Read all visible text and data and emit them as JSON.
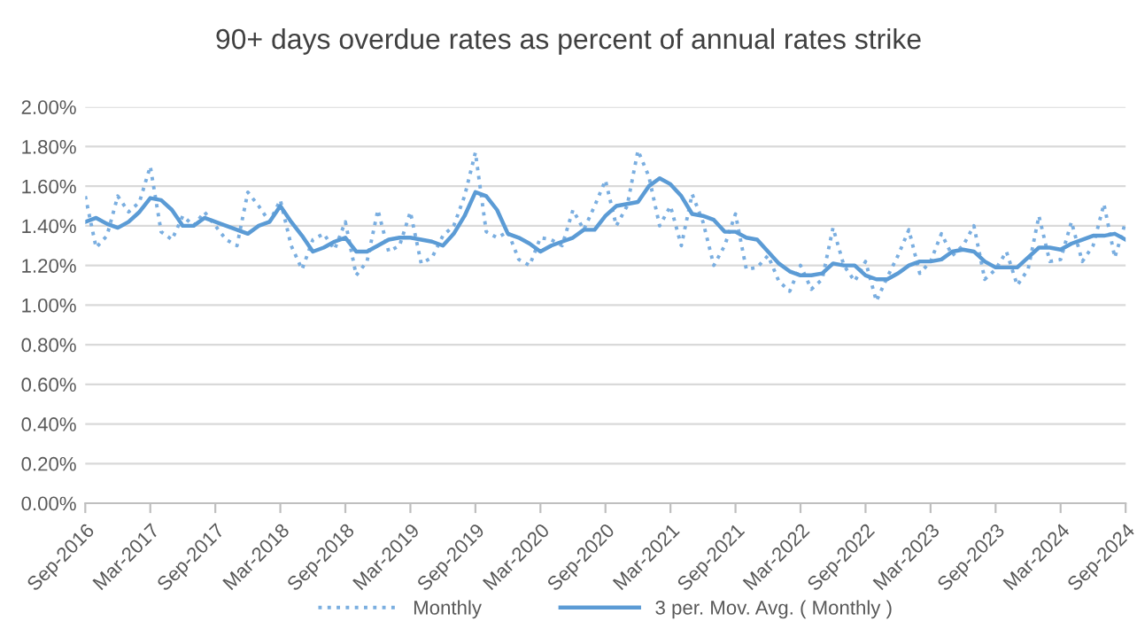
{
  "chart_data": {
    "type": "line",
    "title": "90+ days overdue rates as percent of annual rates strike",
    "categories": [
      "Sep-2016",
      null,
      null,
      null,
      null,
      null,
      "Mar-2017",
      null,
      null,
      null,
      null,
      null,
      "Sep-2017",
      null,
      null,
      null,
      null,
      null,
      "Mar-2018",
      null,
      null,
      null,
      null,
      null,
      "Sep-2018",
      null,
      null,
      null,
      null,
      null,
      "Mar-2019",
      null,
      null,
      null,
      null,
      null,
      "Sep-2019",
      null,
      null,
      null,
      null,
      null,
      "Mar-2020",
      null,
      null,
      null,
      null,
      null,
      "Sep-2020",
      null,
      null,
      null,
      null,
      null,
      "Mar-2021",
      null,
      null,
      null,
      null,
      null,
      "Sep-2021",
      null,
      null,
      null,
      null,
      null,
      "Mar-2022",
      null,
      null,
      null,
      null,
      null,
      "Sep-2022",
      null,
      null,
      null,
      null,
      null,
      "Mar-2023",
      null,
      null,
      null,
      null,
      null,
      "Sep-2023",
      null,
      null,
      null,
      null,
      null,
      "Mar-2024",
      null,
      null,
      null,
      null,
      null,
      "Sep-2024"
    ],
    "series": [
      {
        "name": "Monthly",
        "color": "#7aaee0",
        "line_style": "dotted",
        "values": [
          1.55,
          1.29,
          1.35,
          1.55,
          1.47,
          1.52,
          1.7,
          1.37,
          1.33,
          1.45,
          1.4,
          1.47,
          1.4,
          1.33,
          1.3,
          1.57,
          1.5,
          1.42,
          1.53,
          1.3,
          1.18,
          1.33,
          1.36,
          1.28,
          1.42,
          1.15,
          1.22,
          1.48,
          1.27,
          1.3,
          1.47,
          1.21,
          1.24,
          1.35,
          1.4,
          1.55,
          1.77,
          1.37,
          1.34,
          1.37,
          1.23,
          1.2,
          1.34,
          1.33,
          1.3,
          1.48,
          1.38,
          1.5,
          1.63,
          1.4,
          1.5,
          1.78,
          1.65,
          1.4,
          1.5,
          1.3,
          1.56,
          1.42,
          1.2,
          1.3,
          1.46,
          1.18,
          1.19,
          1.25,
          1.12,
          1.07,
          1.2,
          1.08,
          1.13,
          1.39,
          1.2,
          1.12,
          1.22,
          1.02,
          1.14,
          1.25,
          1.38,
          1.16,
          1.22,
          1.36,
          1.25,
          1.3,
          1.4,
          1.13,
          1.18,
          1.27,
          1.1,
          1.18,
          1.45,
          1.22,
          1.23,
          1.42,
          1.22,
          1.3,
          1.51,
          1.24,
          1.42
        ]
      },
      {
        "name": "3 per. Mov. Avg. ( Monthly )",
        "color": "#5b9bd5",
        "line_style": "solid",
        "values": [
          1.42,
          1.44,
          1.41,
          1.39,
          1.42,
          1.47,
          1.54,
          1.53,
          1.48,
          1.4,
          1.4,
          1.44,
          1.42,
          1.4,
          1.38,
          1.36,
          1.4,
          1.42,
          1.5,
          1.42,
          1.35,
          1.27,
          1.29,
          1.32,
          1.34,
          1.27,
          1.27,
          1.3,
          1.33,
          1.34,
          1.34,
          1.33,
          1.32,
          1.3,
          1.36,
          1.45,
          1.57,
          1.55,
          1.48,
          1.36,
          1.34,
          1.31,
          1.27,
          1.3,
          1.32,
          1.34,
          1.38,
          1.38,
          1.45,
          1.5,
          1.51,
          1.52,
          1.6,
          1.64,
          1.61,
          1.55,
          1.46,
          1.45,
          1.43,
          1.37,
          1.37,
          1.34,
          1.33,
          1.27,
          1.21,
          1.17,
          1.15,
          1.15,
          1.16,
          1.21,
          1.2,
          1.2,
          1.15,
          1.13,
          1.13,
          1.16,
          1.2,
          1.22,
          1.22,
          1.23,
          1.27,
          1.28,
          1.27,
          1.22,
          1.19,
          1.19,
          1.19,
          1.24,
          1.29,
          1.29,
          1.28,
          1.31,
          1.33,
          1.35,
          1.35,
          1.36,
          1.33
        ]
      }
    ],
    "ylim": [
      0,
      2.0
    ],
    "yticks": [
      {
        "value": 0,
        "label": "0.00%"
      },
      {
        "value": 0.2,
        "label": "0.20%"
      },
      {
        "value": 0.4,
        "label": "0.40%"
      },
      {
        "value": 0.6,
        "label": "0.60%"
      },
      {
        "value": 0.8,
        "label": "0.80%"
      },
      {
        "value": 1.0,
        "label": "1.00%"
      },
      {
        "value": 1.2,
        "label": "1.20%"
      },
      {
        "value": 1.4,
        "label": "1.40%"
      },
      {
        "value": 1.6,
        "label": "1.60%"
      },
      {
        "value": 1.8,
        "label": "1.80%"
      },
      {
        "value": 2.0,
        "label": "2.00%"
      }
    ],
    "grid": "y",
    "legend": "bottom",
    "marker": "none"
  }
}
